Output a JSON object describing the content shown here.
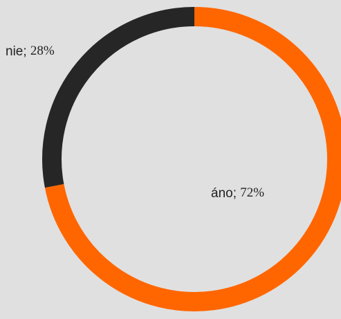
{
  "chart_data": {
    "type": "donut",
    "categories": [
      "áno",
      "nie"
    ],
    "values": [
      72,
      28
    ],
    "value_labels": [
      "72%",
      "28%"
    ],
    "label_separator": "; ",
    "colors": [
      "#ff6600",
      "#262626"
    ]
  }
}
